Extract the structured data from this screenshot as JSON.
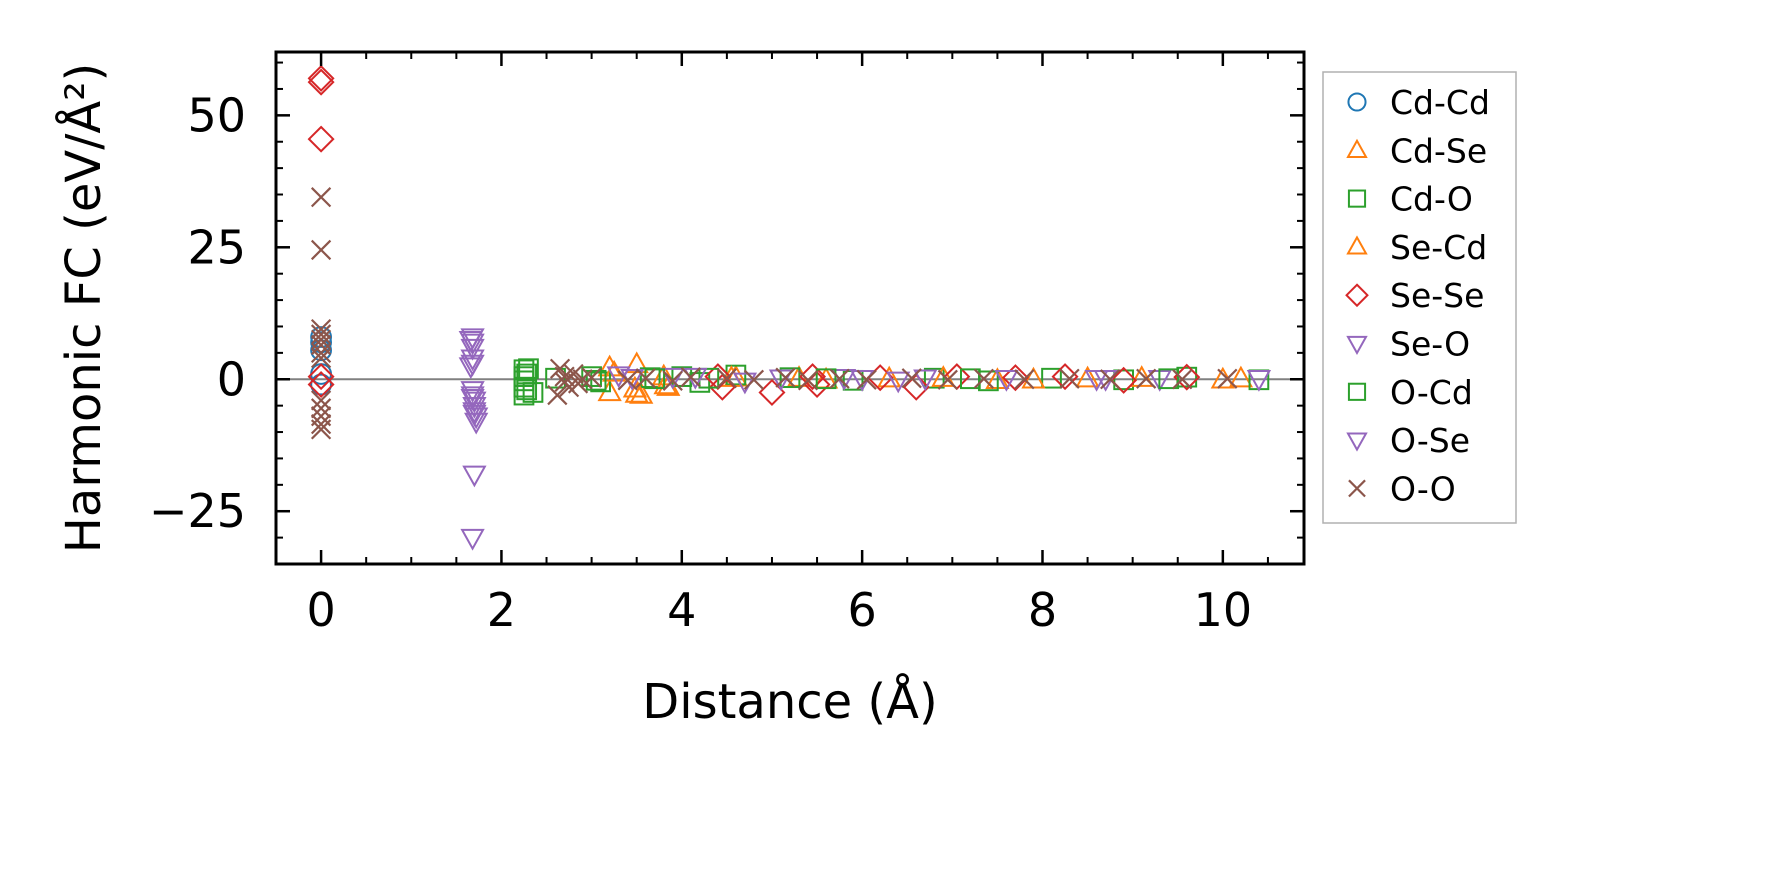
{
  "chart_data": {
    "type": "scatter",
    "title": "",
    "xlabel": "Distance (Å)",
    "ylabel": "Harmonic FC (eV/Å²)",
    "xlim": [
      -0.5,
      10.9
    ],
    "ylim": [
      -35,
      62
    ],
    "xticks": [
      0,
      2,
      4,
      6,
      8,
      10
    ],
    "xtick_labels": [
      "0",
      "2",
      "4",
      "6",
      "8",
      "10"
    ],
    "yticks": [
      -25,
      0,
      25,
      50
    ],
    "ytick_labels": [
      "−25",
      "0",
      "25",
      "50"
    ],
    "grid": false,
    "zero_line": true,
    "legend_position": "outside-right",
    "series": [
      {
        "name": "Cd-Cd",
        "marker": "circle",
        "color": "#1f77b4",
        "points": [
          [
            0,
            8.0
          ],
          [
            0,
            7.0
          ],
          [
            0,
            5.5
          ],
          [
            0,
            -1.0
          ],
          [
            0,
            1.0
          ]
        ]
      },
      {
        "name": "Cd-Se",
        "marker": "triangle-up",
        "color": "#ff7f0e",
        "points": [
          [
            3.2,
            2.2
          ],
          [
            3.2,
            -2.5
          ],
          [
            3.5,
            2.8
          ],
          [
            3.5,
            -2.8
          ],
          [
            3.55,
            -3.0
          ],
          [
            3.8,
            0.5
          ],
          [
            3.85,
            -1.5
          ],
          [
            4.6,
            0.3
          ],
          [
            5.3,
            0.2
          ],
          [
            6.3,
            0.1
          ],
          [
            7.5,
            -0.2
          ],
          [
            8.5,
            0.1
          ],
          [
            10.0,
            -0.1
          ],
          [
            10.2,
            0.1
          ]
        ]
      },
      {
        "name": "Cd-O",
        "marker": "square",
        "color": "#2ca02c",
        "points": [
          [
            2.25,
            1.8
          ],
          [
            2.25,
            0.5
          ],
          [
            2.25,
            -0.3
          ],
          [
            2.25,
            -1.5
          ],
          [
            2.25,
            -3.0
          ],
          [
            2.3,
            2.0
          ],
          [
            2.35,
            -2.5
          ],
          [
            3.0,
            0.5
          ],
          [
            3.1,
            -0.5
          ],
          [
            3.65,
            0.3
          ],
          [
            4.0,
            0.5
          ],
          [
            4.2,
            -0.6
          ],
          [
            4.6,
            0.8
          ],
          [
            5.2,
            0.3
          ],
          [
            5.9,
            -0.2
          ],
          [
            6.8,
            0.2
          ],
          [
            7.4,
            -0.3
          ],
          [
            8.1,
            0.2
          ],
          [
            8.9,
            -0.1
          ],
          [
            9.6,
            0.4
          ],
          [
            10.4,
            -0.1
          ]
        ]
      },
      {
        "name": "Se-Cd",
        "marker": "triangle-up",
        "color": "#ff7f0e",
        "points": [
          [
            3.25,
            1.2
          ],
          [
            3.48,
            -1.8
          ],
          [
            3.82,
            -1.2
          ],
          [
            4.55,
            0.2
          ],
          [
            5.6,
            -0.1
          ],
          [
            6.9,
            0.2
          ],
          [
            7.9,
            -0.1
          ],
          [
            9.1,
            0.2
          ]
        ]
      },
      {
        "name": "Se-Se",
        "marker": "diamond",
        "color": "#d62728",
        "points": [
          [
            0,
            57.0
          ],
          [
            0,
            56.3
          ],
          [
            0,
            45.5
          ],
          [
            0,
            0.5
          ],
          [
            0,
            -1.0
          ],
          [
            4.4,
            0.5
          ],
          [
            4.45,
            -1.5
          ],
          [
            5.0,
            -2.5
          ],
          [
            5.45,
            0.5
          ],
          [
            5.5,
            -1.0
          ],
          [
            6.2,
            0.3
          ],
          [
            6.6,
            -1.5
          ],
          [
            7.05,
            0.5
          ],
          [
            7.7,
            0.3
          ],
          [
            8.25,
            0.5
          ],
          [
            8.9,
            -0.2
          ],
          [
            9.6,
            0.4
          ]
        ]
      },
      {
        "name": "Se-O",
        "marker": "triangle-down",
        "color": "#9467bd",
        "points": [
          [
            1.68,
            8.0
          ],
          [
            1.68,
            7.0
          ],
          [
            1.68,
            6.0
          ],
          [
            1.68,
            4.0
          ],
          [
            1.68,
            3.0
          ],
          [
            1.68,
            -2.0
          ],
          [
            1.68,
            -3.0
          ],
          [
            1.7,
            -4.0
          ],
          [
            1.7,
            -5.0
          ],
          [
            1.7,
            -6.0
          ],
          [
            1.72,
            -7.0
          ],
          [
            1.72,
            -8.0
          ],
          [
            1.7,
            -18.0
          ],
          [
            1.68,
            -30.0
          ],
          [
            3.3,
            0.8
          ],
          [
            3.9,
            0.5
          ],
          [
            4.7,
            -0.4
          ],
          [
            5.8,
            0.3
          ],
          [
            6.7,
            0.2
          ],
          [
            8.6,
            0.1
          ],
          [
            9.3,
            0.1
          ],
          [
            10.4,
            0.1
          ]
        ]
      },
      {
        "name": "O-Cd",
        "marker": "square",
        "color": "#2ca02c",
        "points": [
          [
            2.28,
            1.0
          ],
          [
            2.28,
            -2.0
          ],
          [
            2.6,
            0.2
          ],
          [
            3.05,
            -0.2
          ],
          [
            3.7,
            0.1
          ],
          [
            4.3,
            0.2
          ],
          [
            5.6,
            0.1
          ],
          [
            7.2,
            0.1
          ],
          [
            9.4,
            0.1
          ]
        ]
      },
      {
        "name": "O-Se",
        "marker": "triangle-down",
        "color": "#9467bd",
        "points": [
          [
            1.66,
            7.5
          ],
          [
            1.66,
            2.5
          ],
          [
            1.68,
            -3.5
          ],
          [
            1.7,
            -6.5
          ],
          [
            3.45,
            0.3
          ],
          [
            4.15,
            0.5
          ],
          [
            5.1,
            0.2
          ],
          [
            6.0,
            0.1
          ],
          [
            6.4,
            -0.2
          ],
          [
            7.6,
            0.1
          ],
          [
            8.7,
            0.1
          ]
        ]
      },
      {
        "name": "O-O",
        "marker": "x",
        "color": "#8c564b",
        "points": [
          [
            0,
            34.5
          ],
          [
            0,
            24.5
          ],
          [
            0,
            9.5
          ],
          [
            0,
            8.5
          ],
          [
            0,
            7.5
          ],
          [
            0,
            6.5
          ],
          [
            0,
            5.0
          ],
          [
            0,
            4.0
          ],
          [
            0,
            -4.0
          ],
          [
            0,
            -5.5
          ],
          [
            0,
            -7.0
          ],
          [
            0,
            -8.5
          ],
          [
            0,
            -9.5
          ],
          [
            2.65,
            2.0
          ],
          [
            2.7,
            0.5
          ],
          [
            2.7,
            -0.5
          ],
          [
            2.75,
            -1.5
          ],
          [
            2.62,
            -3.0
          ],
          [
            2.8,
            1.0
          ],
          [
            2.85,
            -0.8
          ],
          [
            2.9,
            0.0
          ],
          [
            3.0,
            0.3
          ],
          [
            3.4,
            -0.2
          ],
          [
            3.6,
            0.2
          ],
          [
            3.9,
            -0.3
          ],
          [
            4.1,
            0.4
          ],
          [
            4.5,
            0.2
          ],
          [
            4.8,
            -0.1
          ],
          [
            5.15,
            0.3
          ],
          [
            5.4,
            -0.2
          ],
          [
            5.75,
            0.1
          ],
          [
            6.05,
            -0.1
          ],
          [
            6.55,
            0.2
          ],
          [
            6.95,
            -0.1
          ],
          [
            7.35,
            0.1
          ],
          [
            7.8,
            0.0
          ],
          [
            8.3,
            0.1
          ],
          [
            8.75,
            0.0
          ],
          [
            9.15,
            0.1
          ],
          [
            9.55,
            0.0
          ],
          [
            10.05,
            0.1
          ]
        ]
      }
    ]
  }
}
